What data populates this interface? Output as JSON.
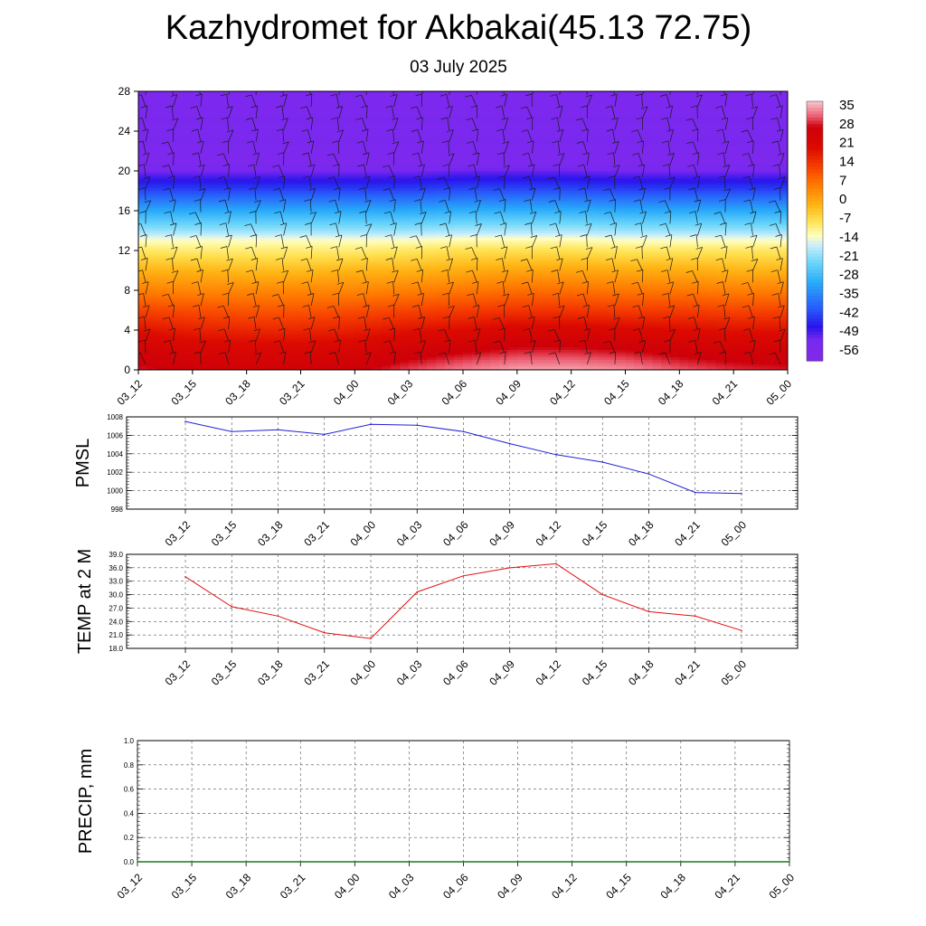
{
  "header": {
    "title": "Kazhydromet for Akbakai(45.13 72.75)",
    "subtitle": "03 July 2025"
  },
  "chart_data": [
    {
      "type": "heatmap",
      "name": "temperature-cross-section",
      "x_ticks": [
        "03_12",
        "03_15",
        "03_18",
        "03_21",
        "04_00",
        "04_03",
        "04_06",
        "04_09",
        "04_12",
        "04_15",
        "04_18",
        "04_21",
        "05_00"
      ],
      "y_ticks": [
        0,
        4,
        8,
        12,
        16,
        20,
        24,
        28
      ],
      "ylim": [
        0,
        28
      ],
      "colorbar_labels": [
        "35",
        "28",
        "21",
        "14",
        "7",
        "0",
        "-7",
        "-14",
        "-21",
        "-28",
        "-35",
        "-42",
        "-49",
        "-56"
      ],
      "colorbar_range": [
        -60,
        40
      ],
      "levels": [
        0,
        2,
        4,
        6,
        8,
        10,
        12,
        13,
        14,
        16,
        18,
        20,
        21,
        22,
        24,
        26,
        28
      ],
      "temperature_by_level": [
        [
          31,
          29,
          28,
          29,
          29,
          33,
          36,
          38,
          38,
          37,
          34,
          32,
          31
        ],
        [
          27,
          25,
          24,
          24,
          25,
          27,
          29,
          31,
          31,
          30,
          28,
          27,
          27
        ],
        [
          21,
          19,
          18,
          18,
          19,
          21,
          22,
          24,
          24,
          23,
          22,
          21,
          21
        ],
        [
          14,
          13,
          12,
          12,
          13,
          14,
          15,
          16,
          16,
          15,
          15,
          14,
          14
        ],
        [
          7,
          6,
          6,
          6,
          6,
          7,
          8,
          9,
          9,
          8,
          8,
          7,
          7
        ],
        [
          0,
          0,
          -1,
          -1,
          0,
          0,
          1,
          2,
          2,
          1,
          1,
          0,
          0
        ],
        [
          -7,
          -8,
          -8,
          -8,
          -8,
          -7,
          -6,
          -6,
          -6,
          -7,
          -7,
          -7,
          -7
        ],
        [
          -12,
          -12,
          -12,
          -12,
          -12,
          -12,
          -11,
          -11,
          -11,
          -12,
          -12,
          -12,
          -12
        ],
        [
          -19,
          -19,
          -19,
          -19,
          -19,
          -19,
          -18,
          -18,
          -18,
          -19,
          -19,
          -19,
          -19
        ],
        [
          -30,
          -30,
          -30,
          -30,
          -30,
          -30,
          -29,
          -29,
          -29,
          -30,
          -30,
          -30,
          -30
        ],
        [
          -42,
          -42,
          -42,
          -42,
          -42,
          -42,
          -41,
          -41,
          -41,
          -42,
          -42,
          -42,
          -42
        ],
        [
          -52,
          -52,
          -52,
          -52,
          -52,
          -52,
          -51,
          -51,
          -51,
          -52,
          -52,
          -52,
          -52
        ],
        [
          -57,
          -57,
          -57,
          -57,
          -57,
          -57,
          -56,
          -56,
          -56,
          -57,
          -57,
          -57,
          -57
        ],
        [
          -55,
          -55,
          -55,
          -55,
          -55,
          -55,
          -55,
          -55,
          -55,
          -55,
          -55,
          -55,
          -55
        ],
        [
          -54,
          -54,
          -54,
          -54,
          -54,
          -54,
          -54,
          -54,
          -54,
          -54,
          -54,
          -54,
          -54
        ],
        [
          -55,
          -55,
          -55,
          -55,
          -55,
          -55,
          -55,
          -55,
          -55,
          -55,
          -55,
          -55,
          -55
        ],
        [
          -56,
          -56,
          -56,
          -56,
          -56,
          -56,
          -56,
          -56,
          -56,
          -56,
          -56,
          -56,
          -56
        ]
      ],
      "wind_barbs": true
    },
    {
      "type": "line",
      "name": "pmsl",
      "ylabel": "PMSL",
      "x": [
        "03_12",
        "03_15",
        "03_18",
        "03_21",
        "04_00",
        "04_03",
        "04_06",
        "04_09",
        "04_12",
        "04_15",
        "04_18",
        "04_21",
        "05_00"
      ],
      "values": [
        1007.5,
        1006.4,
        1006.6,
        1006.1,
        1007.2,
        1007.1,
        1006.4,
        1005.1,
        1003.9,
        1003.1,
        1001.8,
        999.8,
        999.7
      ],
      "ylim": [
        998,
        1008
      ],
      "y_ticks": [
        "998",
        "1000",
        "1002",
        "1004",
        "1006",
        "1008"
      ],
      "color": "#1f1fd6",
      "grid": true
    },
    {
      "type": "line",
      "name": "temp-2m",
      "ylabel": "TEMP at 2 M",
      "x": [
        "03_12",
        "03_15",
        "03_18",
        "03_21",
        "04_00",
        "04_03",
        "04_06",
        "04_09",
        "04_12",
        "04_15",
        "04_18",
        "04_21",
        "05_00"
      ],
      "values": [
        34.0,
        27.3,
        25.2,
        21.5,
        20.2,
        30.6,
        34.2,
        36.0,
        36.9,
        30.0,
        26.2,
        25.2,
        22.0
      ],
      "ylim": [
        18,
        39
      ],
      "y_ticks": [
        "18.0",
        "21.0",
        "24.0",
        "27.0",
        "30.0",
        "33.0",
        "36.0",
        "39.0"
      ],
      "color": "#e01010",
      "grid": true
    },
    {
      "type": "line",
      "name": "precip",
      "ylabel": "PRECIP, mm",
      "x": [
        "03_12",
        "03_15",
        "03_18",
        "03_21",
        "04_00",
        "04_03",
        "04_06",
        "04_09",
        "04_12",
        "04_15",
        "04_18",
        "04_21",
        "05_00"
      ],
      "values": [
        0,
        0,
        0,
        0,
        0,
        0,
        0,
        0,
        0,
        0,
        0,
        0,
        0
      ],
      "ylim": [
        0,
        1
      ],
      "y_ticks": [
        "0.0",
        "0.2",
        "0.4",
        "0.6",
        "0.8",
        "1.0"
      ],
      "color": "#1a7a1a",
      "grid": true
    }
  ]
}
